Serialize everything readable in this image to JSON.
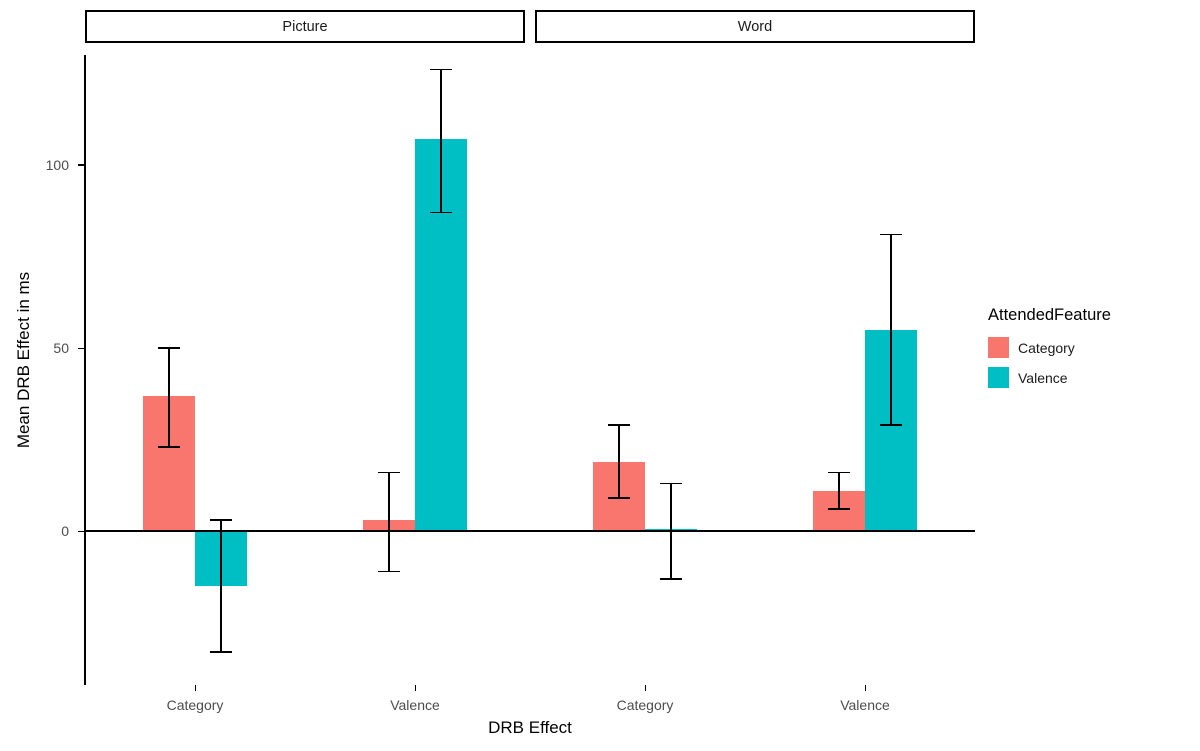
{
  "chart_data": {
    "type": "bar",
    "title": "",
    "xlabel": "DRB Effect",
    "ylabel": "Mean DRB Effect in ms",
    "legend_title": "AttendedFeature",
    "legend_position": "right",
    "grid": false,
    "yticks": [
      0,
      50,
      100
    ],
    "ylim": [
      -42,
      130
    ],
    "series": [
      {
        "name": "Category",
        "color": "#F8766D"
      },
      {
        "name": "Valence",
        "color": "#00BFC4"
      }
    ],
    "facets": [
      {
        "label": "Picture",
        "groups": [
          {
            "category": "Category",
            "bars": [
              {
                "series": "Category",
                "value": 37,
                "err_low": 23,
                "err_high": 50
              },
              {
                "series": "Valence",
                "value": -15,
                "err_low": -33,
                "err_high": 3
              }
            ]
          },
          {
            "category": "Valence",
            "bars": [
              {
                "series": "Category",
                "value": 3,
                "err_low": -11,
                "err_high": 16
              },
              {
                "series": "Valence",
                "value": 107,
                "err_low": 87,
                "err_high": 126
              }
            ]
          }
        ]
      },
      {
        "label": "Word",
        "groups": [
          {
            "category": "Category",
            "bars": [
              {
                "series": "Category",
                "value": 19,
                "err_low": 9,
                "err_high": 29
              },
              {
                "series": "Valence",
                "value": 0.5,
                "err_low": -13,
                "err_high": 13
              }
            ]
          },
          {
            "category": "Valence",
            "bars": [
              {
                "series": "Category",
                "value": 11,
                "err_low": 6,
                "err_high": 16
              },
              {
                "series": "Valence",
                "value": 55,
                "err_low": 29,
                "err_high": 81
              }
            ]
          }
        ]
      }
    ]
  }
}
